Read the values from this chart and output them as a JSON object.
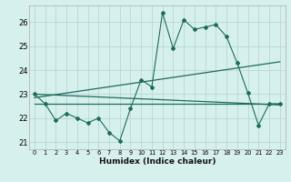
{
  "xlabel": "Humidex (Indice chaleur)",
  "background_color": "#d6f0ee",
  "grid_color": "#b8d8d5",
  "line_color": "#1e6b5e",
  "xlim": [
    -0.5,
    23.5
  ],
  "ylim": [
    20.7,
    26.7
  ],
  "yticks": [
    21,
    22,
    23,
    24,
    25,
    26
  ],
  "xticks": [
    0,
    1,
    2,
    3,
    4,
    5,
    6,
    7,
    8,
    9,
    10,
    11,
    12,
    13,
    14,
    15,
    16,
    17,
    18,
    19,
    20,
    21,
    22,
    23
  ],
  "series_x": [
    0,
    1,
    2,
    3,
    4,
    5,
    6,
    7,
    8,
    9,
    10,
    11,
    12,
    13,
    14,
    15,
    16,
    17,
    18,
    19,
    20,
    21,
    22,
    23
  ],
  "series_y": [
    23.0,
    22.6,
    21.9,
    22.2,
    22.0,
    21.8,
    22.0,
    21.4,
    21.05,
    22.4,
    23.6,
    23.3,
    26.4,
    24.9,
    26.1,
    25.7,
    25.8,
    25.9,
    25.4,
    24.3,
    23.05,
    21.7,
    22.6,
    22.6
  ],
  "trend1_x": [
    0,
    23
  ],
  "trend1_y": [
    23.0,
    22.55
  ],
  "trend2_x": [
    0,
    23
  ],
  "trend2_y": [
    22.85,
    24.35
  ],
  "trend3_x": [
    0,
    23
  ],
  "trend3_y": [
    22.6,
    22.6
  ]
}
